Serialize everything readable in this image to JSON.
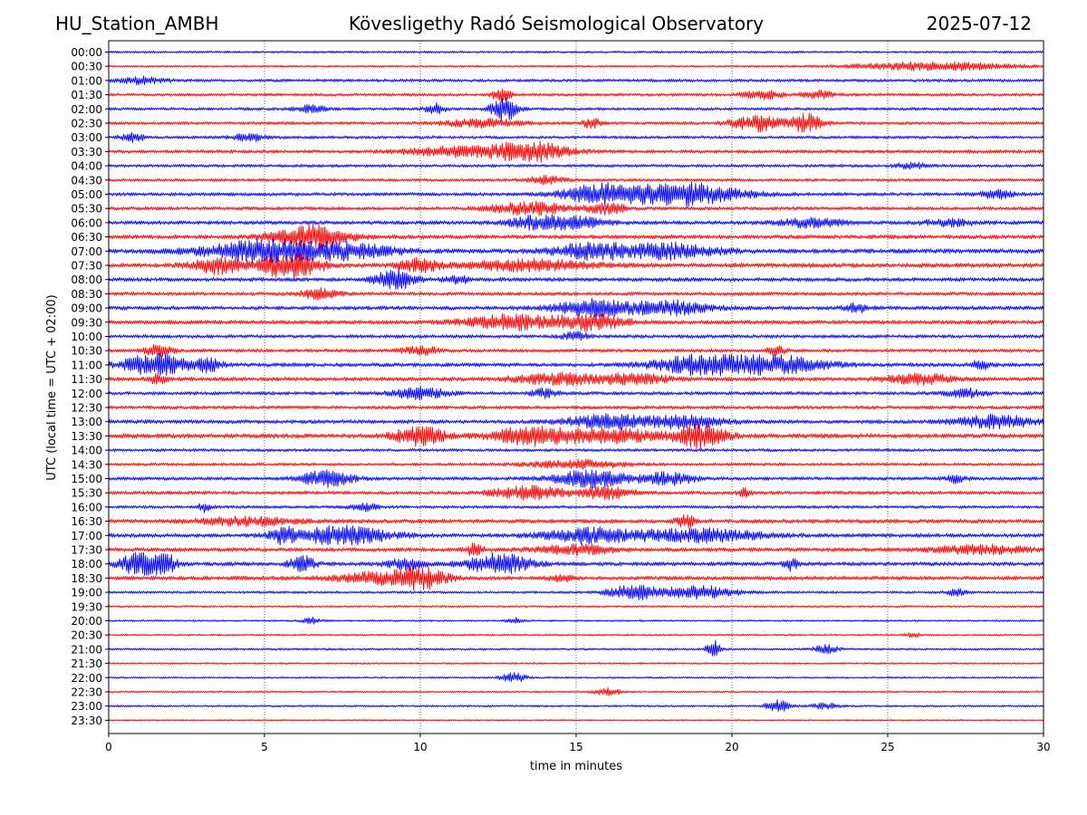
{
  "header": {
    "station": "HU_Station_AMBH",
    "observatory": "Kövesligethy Radó Seismological Observatory",
    "date": "2025-07-12"
  },
  "chart_data": {
    "type": "line",
    "title": "Kövesligethy Radó Seismological Observatory",
    "xlabel": "time in minutes",
    "ylabel": "UTC (local time = UTC + 02:00)",
    "xlim": [
      0,
      30
    ],
    "xticks": [
      0,
      5,
      10,
      15,
      20,
      25,
      30
    ],
    "grid": "vertical-dotted",
    "colors": [
      "#0000ff",
      "#ff0000"
    ],
    "rows": [
      {
        "label": "00:00",
        "color": "#0000ff",
        "noise": 0.22,
        "events": []
      },
      {
        "label": "00:30",
        "color": "#ff0000",
        "noise": 0.2,
        "events": [
          [
            26.5,
            2.5,
            0.8
          ]
        ]
      },
      {
        "label": "01:00",
        "color": "#0000ff",
        "noise": 0.3,
        "events": [
          [
            1.0,
            0.8,
            0.6
          ]
        ]
      },
      {
        "label": "01:30",
        "color": "#ff0000",
        "noise": 0.3,
        "events": [
          [
            12.6,
            0.3,
            1.2
          ],
          [
            21.0,
            0.6,
            0.8
          ],
          [
            22.8,
            0.5,
            0.7
          ]
        ]
      },
      {
        "label": "02:00",
        "color": "#0000ff",
        "noise": 0.3,
        "events": [
          [
            6.5,
            0.5,
            0.7
          ],
          [
            10.5,
            0.3,
            1.0
          ],
          [
            12.7,
            0.4,
            2.5
          ]
        ]
      },
      {
        "label": "02:30",
        "color": "#ff0000",
        "noise": 0.3,
        "events": [
          [
            12.0,
            1.2,
            0.8
          ],
          [
            15.5,
            0.3,
            1.0
          ],
          [
            20.8,
            0.8,
            1.5
          ],
          [
            22.4,
            0.5,
            1.8
          ]
        ]
      },
      {
        "label": "03:00",
        "color": "#0000ff",
        "noise": 0.3,
        "events": [
          [
            0.8,
            0.4,
            0.8
          ],
          [
            4.5,
            0.5,
            0.7
          ]
        ]
      },
      {
        "label": "03:30",
        "color": "#ff0000",
        "noise": 0.35,
        "events": [
          [
            11.0,
            1.5,
            0.9
          ],
          [
            13.5,
            1.2,
            2.0
          ]
        ]
      },
      {
        "label": "04:00",
        "color": "#0000ff",
        "noise": 0.3,
        "events": [
          [
            25.8,
            0.5,
            0.6
          ]
        ]
      },
      {
        "label": "04:30",
        "color": "#ff0000",
        "noise": 0.3,
        "events": [
          [
            14.0,
            0.6,
            0.7
          ]
        ]
      },
      {
        "label": "05:00",
        "color": "#0000ff",
        "noise": 0.35,
        "events": [
          [
            15.8,
            1.2,
            1.8
          ],
          [
            18.5,
            1.8,
            2.2
          ],
          [
            28.5,
            0.5,
            0.8
          ]
        ]
      },
      {
        "label": "05:30",
        "color": "#ff0000",
        "noise": 0.35,
        "events": [
          [
            13.5,
            1.2,
            1.2
          ],
          [
            16.0,
            0.6,
            1.0
          ]
        ]
      },
      {
        "label": "06:00",
        "color": "#0000ff",
        "noise": 0.4,
        "events": [
          [
            13.5,
            0.8,
            1.0
          ],
          [
            14.8,
            1.0,
            1.2
          ],
          [
            22.5,
            1.0,
            0.8
          ],
          [
            27.0,
            0.8,
            0.6
          ]
        ]
      },
      {
        "label": "06:30",
        "color": "#ff0000",
        "noise": 0.4,
        "events": [
          [
            6.5,
            1.2,
            2.2
          ]
        ]
      },
      {
        "label": "07:00",
        "color": "#0000ff",
        "noise": 0.45,
        "events": [
          [
            5.0,
            2.0,
            2.0
          ],
          [
            7.8,
            1.5,
            1.2
          ],
          [
            15.5,
            1.2,
            1.5
          ],
          [
            18.0,
            1.5,
            1.4
          ]
        ]
      },
      {
        "label": "07:30",
        "color": "#ff0000",
        "noise": 0.45,
        "events": [
          [
            3.5,
            0.8,
            1.5
          ],
          [
            5.8,
            1.0,
            2.4
          ],
          [
            10.0,
            0.6,
            1.2
          ],
          [
            13.5,
            2.0,
            1.0
          ]
        ]
      },
      {
        "label": "08:00",
        "color": "#0000ff",
        "noise": 0.4,
        "events": [
          [
            9.2,
            0.6,
            2.0
          ],
          [
            11.2,
            0.4,
            0.8
          ]
        ]
      },
      {
        "label": "08:30",
        "color": "#ff0000",
        "noise": 0.35,
        "events": [
          [
            6.8,
            0.6,
            1.0
          ]
        ]
      },
      {
        "label": "09:00",
        "color": "#0000ff",
        "noise": 0.4,
        "events": [
          [
            15.5,
            1.2,
            1.6
          ],
          [
            18.0,
            1.2,
            1.4
          ],
          [
            24.0,
            0.4,
            0.8
          ]
        ]
      },
      {
        "label": "09:30",
        "color": "#ff0000",
        "noise": 0.4,
        "events": [
          [
            13.0,
            1.5,
            1.4
          ],
          [
            15.5,
            1.0,
            1.5
          ]
        ]
      },
      {
        "label": "10:00",
        "color": "#0000ff",
        "noise": 0.35,
        "events": [
          [
            15.0,
            0.4,
            0.8
          ]
        ]
      },
      {
        "label": "10:30",
        "color": "#ff0000",
        "noise": 0.35,
        "events": [
          [
            1.6,
            0.4,
            1.2
          ],
          [
            10.0,
            0.6,
            0.8
          ],
          [
            21.4,
            0.3,
            0.8
          ]
        ]
      },
      {
        "label": "11:00",
        "color": "#0000ff",
        "noise": 0.4,
        "events": [
          [
            1.5,
            1.0,
            2.2
          ],
          [
            3.2,
            0.4,
            1.2
          ],
          [
            19.0,
            1.5,
            1.8
          ],
          [
            21.5,
            1.5,
            1.6
          ],
          [
            28.0,
            0.3,
            0.8
          ]
        ]
      },
      {
        "label": "11:30",
        "color": "#ff0000",
        "noise": 0.4,
        "events": [
          [
            1.6,
            0.3,
            1.0
          ],
          [
            14.5,
            1.5,
            1.0
          ],
          [
            17.0,
            1.0,
            1.0
          ],
          [
            26.0,
            1.0,
            1.0
          ]
        ]
      },
      {
        "label": "12:00",
        "color": "#0000ff",
        "noise": 0.35,
        "events": [
          [
            10.0,
            0.8,
            1.2
          ],
          [
            14.0,
            0.4,
            0.8
          ],
          [
            27.5,
            0.6,
            0.8
          ]
        ]
      },
      {
        "label": "12:30",
        "color": "#ff0000",
        "noise": 0.35,
        "events": []
      },
      {
        "label": "13:00",
        "color": "#0000ff",
        "noise": 0.4,
        "events": [
          [
            16.0,
            1.2,
            1.4
          ],
          [
            18.5,
            1.2,
            1.2
          ],
          [
            28.5,
            1.2,
            1.2
          ]
        ]
      },
      {
        "label": "13:30",
        "color": "#ff0000",
        "noise": 0.45,
        "events": [
          [
            10.0,
            0.8,
            1.8
          ],
          [
            13.5,
            1.2,
            1.6
          ],
          [
            16.0,
            1.5,
            1.4
          ],
          [
            19.0,
            0.8,
            2.2
          ]
        ]
      },
      {
        "label": "14:00",
        "color": "#0000ff",
        "noise": 0.3,
        "events": []
      },
      {
        "label": "14:30",
        "color": "#ff0000",
        "noise": 0.3,
        "events": [
          [
            15.0,
            1.5,
            0.8
          ]
        ]
      },
      {
        "label": "15:00",
        "color": "#0000ff",
        "noise": 0.35,
        "events": [
          [
            7.0,
            0.8,
            1.5
          ],
          [
            15.5,
            1.2,
            1.6
          ],
          [
            18.0,
            0.8,
            1.2
          ],
          [
            27.2,
            0.3,
            0.8
          ]
        ]
      },
      {
        "label": "15:30",
        "color": "#ff0000",
        "noise": 0.35,
        "events": [
          [
            13.5,
            1.2,
            1.2
          ],
          [
            16.0,
            0.8,
            1.2
          ],
          [
            20.4,
            0.2,
            0.8
          ]
        ]
      },
      {
        "label": "16:00",
        "color": "#0000ff",
        "noise": 0.3,
        "events": [
          [
            3.1,
            0.2,
            1.0
          ],
          [
            8.2,
            0.4,
            0.8
          ]
        ]
      },
      {
        "label": "16:30",
        "color": "#ff0000",
        "noise": 0.4,
        "events": [
          [
            4.5,
            1.5,
            0.8
          ],
          [
            18.5,
            0.3,
            1.4
          ]
        ]
      },
      {
        "label": "17:00",
        "color": "#0000ff",
        "noise": 0.4,
        "events": [
          [
            5.6,
            0.4,
            1.5
          ],
          [
            7.5,
            1.5,
            1.8
          ],
          [
            15.5,
            1.5,
            1.4
          ],
          [
            19.0,
            2.0,
            1.2
          ]
        ]
      },
      {
        "label": "17:30",
        "color": "#ff0000",
        "noise": 0.4,
        "events": [
          [
            11.7,
            0.3,
            1.0
          ],
          [
            15.0,
            1.2,
            0.9
          ],
          [
            28.0,
            1.5,
            0.8
          ]
        ]
      },
      {
        "label": "18:00",
        "color": "#0000ff",
        "noise": 0.4,
        "events": [
          [
            1.0,
            0.6,
            2.2
          ],
          [
            1.8,
            0.4,
            1.8
          ],
          [
            6.2,
            0.4,
            1.5
          ],
          [
            9.5,
            0.6,
            1.0
          ],
          [
            12.5,
            1.0,
            2.0
          ],
          [
            21.9,
            0.2,
            1.2
          ]
        ]
      },
      {
        "label": "18:30",
        "color": "#ff0000",
        "noise": 0.4,
        "events": [
          [
            8.5,
            1.2,
            1.0
          ],
          [
            10.0,
            0.8,
            2.2
          ],
          [
            14.5,
            0.3,
            0.8
          ]
        ]
      },
      {
        "label": "19:00",
        "color": "#0000ff",
        "noise": 0.25,
        "events": [
          [
            16.8,
            0.8,
            1.4
          ],
          [
            19.0,
            1.2,
            1.2
          ],
          [
            27.2,
            0.3,
            0.6
          ]
        ]
      },
      {
        "label": "19:30",
        "color": "#ff0000",
        "noise": 0.2,
        "events": []
      },
      {
        "label": "20:00",
        "color": "#0000ff",
        "noise": 0.18,
        "events": [
          [
            6.5,
            0.3,
            0.6
          ],
          [
            13.0,
            0.3,
            0.6
          ]
        ]
      },
      {
        "label": "20:30",
        "color": "#ff0000",
        "noise": 0.18,
        "events": [
          [
            25.8,
            0.2,
            0.6
          ]
        ]
      },
      {
        "label": "21:00",
        "color": "#0000ff",
        "noise": 0.22,
        "events": [
          [
            19.4,
            0.2,
            2.0
          ],
          [
            23.0,
            0.4,
            0.8
          ]
        ]
      },
      {
        "label": "21:30",
        "color": "#ff0000",
        "noise": 0.18,
        "events": []
      },
      {
        "label": "22:00",
        "color": "#0000ff",
        "noise": 0.18,
        "events": [
          [
            13.0,
            0.4,
            0.9
          ]
        ]
      },
      {
        "label": "22:30",
        "color": "#ff0000",
        "noise": 0.18,
        "events": [
          [
            16.0,
            0.4,
            0.8
          ]
        ]
      },
      {
        "label": "23:00",
        "color": "#0000ff",
        "noise": 0.2,
        "events": [
          [
            21.5,
            0.4,
            1.2
          ],
          [
            23.0,
            0.4,
            0.6
          ]
        ]
      },
      {
        "label": "23:30",
        "color": "#ff0000",
        "noise": 0.15,
        "events": []
      }
    ]
  }
}
